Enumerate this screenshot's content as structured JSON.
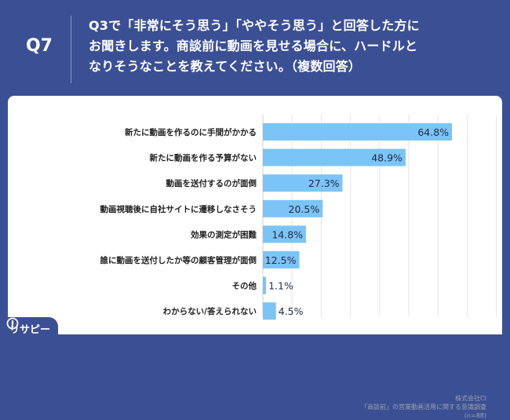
{
  "header": {
    "question_number": "Q7",
    "question_lines": [
      "Q3で「非常にそう思う」「ややそう思う」と回答した方に",
      "お聞きします。商談前に動画を見せる場合に、ハードルと",
      "なりそうなことを教えてください。（複数回答）"
    ]
  },
  "chart_data": {
    "type": "bar",
    "orientation": "horizontal",
    "categories": [
      "新たに動画を作るのに手間がかかる",
      "新たに動画を作る予算がない",
      "動画を送付するのが面倒",
      "動画視聴後に自社サイトに遷移しなさそう",
      "効果の測定が困難",
      "誰に動画を送付したか等の顧客管理が面倒",
      "その他",
      "わからない/答えられない"
    ],
    "values": [
      64.8,
      48.9,
      27.3,
      20.5,
      14.8,
      12.5,
      1.1,
      4.5
    ],
    "value_labels": [
      "64.8%",
      "48.9%",
      "27.3%",
      "20.5%",
      "14.8%",
      "12.5%",
      "1.1%",
      "4.5%"
    ],
    "xlim": [
      0,
      80
    ],
    "grid": true,
    "colors": {
      "bar": "#7cc4f5",
      "grid": "#e6e6e6",
      "background": "#3b4f94"
    }
  },
  "source": {
    "company": "株式会社CI",
    "survey": "「商談前」の営業動画活用に関する意識調査",
    "sample": "(n=88)"
  },
  "logo": {
    "text": "リサピー",
    "icon": "lightbulb-icon"
  }
}
